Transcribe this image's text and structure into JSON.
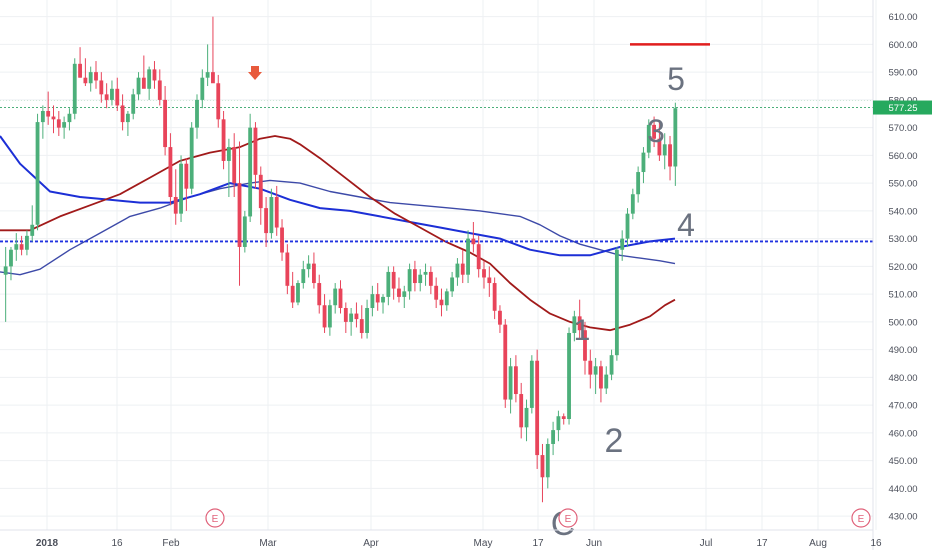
{
  "chart_data": {
    "type": "candlestick",
    "ylim": [
      425,
      616
    ],
    "y_ticks": [
      "610.00",
      "600.00",
      "590.00",
      "580.00",
      "570.00",
      "560.00",
      "550.00",
      "540.00",
      "530.00",
      "520.00",
      "510.00",
      "500.00",
      "490.00",
      "480.00",
      "470.00",
      "460.00",
      "450.00",
      "440.00",
      "430.00"
    ],
    "x_ticks": [
      "2018",
      "16",
      "Feb",
      "Mar",
      "Apr",
      "May",
      "17",
      "Jun",
      "Jul",
      "17",
      "Aug",
      "16"
    ],
    "last_price": "577.25",
    "candles": [
      [
        517,
        527,
        500,
        520
      ],
      [
        520,
        527,
        515,
        526
      ],
      [
        526,
        532,
        522,
        528
      ],
      [
        528,
        531,
        524,
        526
      ],
      [
        526,
        533,
        524,
        531
      ],
      [
        531,
        542,
        529,
        535
      ],
      [
        535,
        575,
        533,
        572
      ],
      [
        572,
        578,
        566,
        576
      ],
      [
        576,
        583,
        571,
        574
      ],
      [
        574,
        578,
        568,
        573
      ],
      [
        573,
        576,
        567,
        570
      ],
      [
        570,
        574,
        566,
        572
      ],
      [
        572,
        577,
        569,
        575
      ],
      [
        575,
        595,
        573,
        593
      ],
      [
        593,
        599,
        588,
        588
      ],
      [
        588,
        595,
        585,
        586
      ],
      [
        586,
        592,
        583,
        590
      ],
      [
        590,
        594,
        584,
        587
      ],
      [
        587,
        590,
        579,
        582
      ],
      [
        582,
        586,
        577,
        580
      ],
      [
        580,
        587,
        578,
        584
      ],
      [
        584,
        588,
        576,
        578
      ],
      [
        578,
        582,
        569,
        572
      ],
      [
        572,
        576,
        567,
        575
      ],
      [
        575,
        584,
        573,
        582
      ],
      [
        582,
        590,
        580,
        588
      ],
      [
        588,
        596,
        585,
        584
      ],
      [
        584,
        592,
        580,
        591
      ],
      [
        591,
        594,
        584,
        587
      ],
      [
        587,
        591,
        578,
        580
      ],
      [
        580,
        585,
        560,
        563
      ],
      [
        563,
        568,
        542,
        545
      ],
      [
        545,
        555,
        535,
        539
      ],
      [
        539,
        560,
        536,
        557
      ],
      [
        557,
        559,
        540,
        548
      ],
      [
        548,
        572,
        546,
        570
      ],
      [
        570,
        582,
        566,
        580
      ],
      [
        580,
        591,
        577,
        588
      ],
      [
        588,
        600,
        585,
        590
      ],
      [
        590,
        610,
        587,
        586
      ],
      [
        586,
        589,
        570,
        573
      ],
      [
        573,
        576,
        555,
        558
      ],
      [
        558,
        566,
        545,
        563
      ],
      [
        563,
        568,
        545,
        550
      ],
      [
        550,
        565,
        513,
        527
      ],
      [
        527,
        540,
        525,
        538
      ],
      [
        538,
        575,
        536,
        570
      ],
      [
        570,
        572,
        548,
        553
      ],
      [
        553,
        556,
        535,
        541
      ],
      [
        541,
        545,
        527,
        532
      ],
      [
        532,
        548,
        530,
        545
      ],
      [
        545,
        549,
        531,
        534
      ],
      [
        534,
        537,
        522,
        525
      ],
      [
        525,
        528,
        510,
        513
      ],
      [
        513,
        518,
        505,
        507
      ],
      [
        507,
        515,
        506,
        514
      ],
      [
        514,
        522,
        512,
        519
      ],
      [
        519,
        524,
        516,
        521
      ],
      [
        521,
        525,
        512,
        514
      ],
      [
        514,
        517,
        503,
        506
      ],
      [
        506,
        510,
        496,
        498
      ],
      [
        498,
        508,
        495,
        506
      ],
      [
        506,
        514,
        503,
        512
      ],
      [
        512,
        515,
        503,
        505
      ],
      [
        505,
        507,
        496,
        500
      ],
      [
        500,
        505,
        495,
        503
      ],
      [
        503,
        507,
        498,
        501
      ],
      [
        501,
        506,
        494,
        496
      ],
      [
        496,
        508,
        494,
        505
      ],
      [
        505,
        513,
        502,
        510
      ],
      [
        510,
        514,
        504,
        507
      ],
      [
        507,
        510,
        503,
        509
      ],
      [
        509,
        520,
        506,
        518
      ],
      [
        518,
        520,
        508,
        512
      ],
      [
        512,
        516,
        507,
        509
      ],
      [
        509,
        513,
        505,
        511
      ],
      [
        511,
        521,
        508,
        519
      ],
      [
        519,
        522,
        511,
        514
      ],
      [
        514,
        519,
        511,
        517
      ],
      [
        517,
        521,
        513,
        518
      ],
      [
        518,
        520,
        510,
        513
      ],
      [
        513,
        516,
        505,
        508
      ],
      [
        508,
        512,
        502,
        506
      ],
      [
        506,
        512,
        504,
        511
      ],
      [
        511,
        518,
        509,
        516
      ],
      [
        516,
        523,
        513,
        521
      ],
      [
        521,
        526,
        514,
        517
      ],
      [
        517,
        533,
        514,
        530
      ],
      [
        530,
        536,
        525,
        528
      ],
      [
        528,
        531,
        516,
        519
      ],
      [
        519,
        522,
        512,
        516
      ],
      [
        516,
        520,
        509,
        514
      ],
      [
        514,
        516,
        501,
        504
      ],
      [
        504,
        506,
        496,
        499
      ],
      [
        499,
        501,
        469,
        472
      ],
      [
        472,
        487,
        467,
        484
      ],
      [
        484,
        488,
        471,
        474
      ],
      [
        474,
        478,
        458,
        462
      ],
      [
        462,
        472,
        457,
        469
      ],
      [
        469,
        488,
        467,
        486
      ],
      [
        486,
        490,
        447,
        452
      ],
      [
        452,
        456,
        435,
        444
      ],
      [
        444,
        458,
        440,
        456
      ],
      [
        456,
        464,
        452,
        461
      ],
      [
        461,
        468,
        457,
        466
      ],
      [
        466,
        467,
        463,
        465
      ],
      [
        465,
        498,
        463,
        496
      ],
      [
        496,
        504,
        493,
        502
      ],
      [
        502,
        508,
        494,
        497
      ],
      [
        497,
        500,
        481,
        486
      ],
      [
        486,
        490,
        476,
        481
      ],
      [
        481,
        487,
        474,
        484
      ],
      [
        484,
        486,
        471,
        476
      ],
      [
        476,
        484,
        474,
        481
      ],
      [
        481,
        490,
        479,
        488
      ],
      [
        488,
        527,
        486,
        526
      ],
      [
        526,
        533,
        522,
        530
      ],
      [
        530,
        541,
        527,
        539
      ],
      [
        539,
        548,
        537,
        546
      ],
      [
        546,
        556,
        543,
        554
      ],
      [
        554,
        563,
        550,
        561
      ],
      [
        561,
        573,
        559,
        571
      ],
      [
        571,
        574,
        563,
        566
      ],
      [
        566,
        572,
        558,
        560
      ],
      [
        560,
        568,
        555,
        564
      ],
      [
        564,
        567,
        551,
        556
      ],
      [
        556,
        579,
        549,
        577
      ]
    ],
    "ma_blue": [
      [
        0,
        567
      ],
      [
        20,
        557
      ],
      [
        50,
        547
      ],
      [
        80,
        545
      ],
      [
        110,
        544
      ],
      [
        140,
        543
      ],
      [
        170,
        543
      ],
      [
        200,
        546
      ],
      [
        230,
        550
      ],
      [
        260,
        548
      ],
      [
        290,
        544
      ],
      [
        320,
        541
      ],
      [
        350,
        540
      ],
      [
        380,
        538
      ],
      [
        410,
        536
      ],
      [
        440,
        534
      ],
      [
        470,
        532
      ],
      [
        500,
        530
      ],
      [
        530,
        526
      ],
      [
        560,
        524
      ],
      [
        590,
        524
      ],
      [
        620,
        527
      ],
      [
        650,
        529
      ],
      [
        675,
        530
      ]
    ],
    "ma_slate": [
      [
        0,
        518
      ],
      [
        20,
        517
      ],
      [
        40,
        519
      ],
      [
        70,
        526
      ],
      [
        100,
        532
      ],
      [
        130,
        538
      ],
      [
        160,
        541
      ],
      [
        190,
        545
      ],
      [
        220,
        548
      ],
      [
        250,
        550
      ],
      [
        270,
        551
      ],
      [
        300,
        550
      ],
      [
        330,
        547
      ],
      [
        360,
        545
      ],
      [
        390,
        543
      ],
      [
        420,
        542
      ],
      [
        450,
        541
      ],
      [
        480,
        540
      ],
      [
        500,
        539
      ],
      [
        520,
        538
      ],
      [
        540,
        535
      ],
      [
        560,
        531
      ],
      [
        580,
        528
      ],
      [
        600,
        526
      ],
      [
        620,
        524
      ],
      [
        640,
        523
      ],
      [
        660,
        522
      ],
      [
        675,
        521
      ]
    ],
    "ma_red": [
      [
        0,
        533
      ],
      [
        30,
        533
      ],
      [
        60,
        538
      ],
      [
        90,
        542
      ],
      [
        120,
        546
      ],
      [
        150,
        552
      ],
      [
        180,
        558
      ],
      [
        210,
        561
      ],
      [
        240,
        563
      ],
      [
        260,
        566
      ],
      [
        275,
        567
      ],
      [
        290,
        566
      ],
      [
        300,
        564
      ],
      [
        320,
        559
      ],
      [
        345,
        552
      ],
      [
        370,
        545
      ],
      [
        395,
        539
      ],
      [
        420,
        534
      ],
      [
        445,
        529
      ],
      [
        470,
        525
      ],
      [
        490,
        521
      ],
      [
        510,
        514
      ],
      [
        530,
        508
      ],
      [
        550,
        503
      ],
      [
        570,
        500
      ],
      [
        590,
        498
      ],
      [
        610,
        497
      ],
      [
        630,
        499
      ],
      [
        650,
        502
      ],
      [
        665,
        506
      ],
      [
        675,
        508
      ]
    ],
    "ref_line": 529,
    "resist_line": 600,
    "wave_labels": [
      "5",
      "3",
      "4",
      "1",
      "2",
      "C"
    ],
    "earnings_label": "E"
  }
}
